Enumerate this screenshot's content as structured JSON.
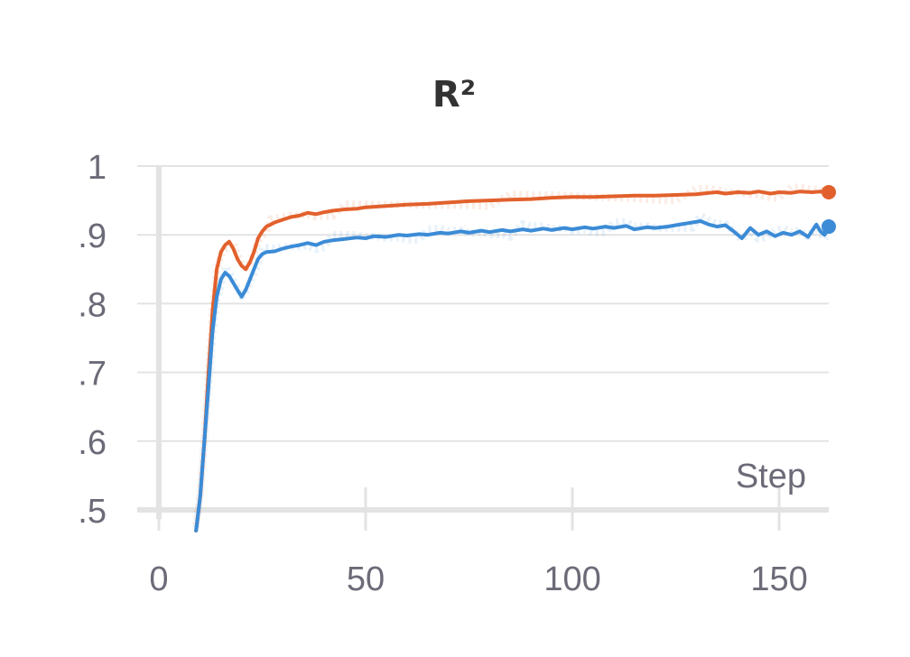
{
  "chart_data": {
    "type": "line",
    "title": "R²",
    "xlabel": "Step",
    "ylabel": "",
    "xlim": [
      0,
      162
    ],
    "ylim": [
      0.5,
      1.0
    ],
    "x_ticks": [
      0,
      50,
      100,
      150
    ],
    "y_ticks": [
      0.5,
      0.6,
      0.7,
      0.8,
      0.9,
      1.0
    ],
    "x_tick_labels": [
      "0",
      "50",
      "100",
      "150"
    ],
    "y_tick_labels": [
      ".5",
      ".6",
      ".7",
      ".8",
      ".9",
      "1"
    ],
    "grid": true,
    "legend": "none",
    "colors": {
      "orange": "#e2602c",
      "blue": "#3b8bd6"
    },
    "series": [
      {
        "color": "#e2602c",
        "x": [
          9,
          10,
          11,
          12,
          13,
          14,
          15,
          16,
          17,
          18,
          19,
          20,
          21,
          22,
          23,
          24,
          25,
          26,
          27,
          28,
          30,
          32,
          34,
          36,
          38,
          40,
          42,
          45,
          48,
          50,
          55,
          60,
          65,
          70,
          75,
          80,
          85,
          90,
          95,
          100,
          105,
          110,
          115,
          120,
          125,
          130,
          133,
          135,
          137,
          140,
          143,
          145,
          148,
          150,
          153,
          155,
          158,
          160,
          162
        ],
        "y": [
          0.47,
          0.52,
          0.6,
          0.7,
          0.79,
          0.85,
          0.875,
          0.885,
          0.89,
          0.88,
          0.865,
          0.855,
          0.85,
          0.86,
          0.875,
          0.895,
          0.905,
          0.912,
          0.915,
          0.918,
          0.922,
          0.926,
          0.928,
          0.932,
          0.93,
          0.933,
          0.935,
          0.937,
          0.938,
          0.94,
          0.942,
          0.944,
          0.945,
          0.947,
          0.949,
          0.95,
          0.951,
          0.952,
          0.954,
          0.955,
          0.955,
          0.956,
          0.957,
          0.957,
          0.958,
          0.959,
          0.961,
          0.962,
          0.96,
          0.962,
          0.961,
          0.963,
          0.96,
          0.962,
          0.961,
          0.963,
          0.962,
          0.963,
          0.962
        ]
      },
      {
        "color": "#3b8bd6",
        "x": [
          9,
          10,
          11,
          12,
          13,
          14,
          15,
          16,
          17,
          18,
          19,
          20,
          21,
          22,
          23,
          24,
          25,
          26,
          28,
          30,
          32,
          34,
          36,
          38,
          40,
          42,
          45,
          48,
          50,
          52,
          55,
          58,
          60,
          63,
          65,
          68,
          70,
          73,
          75,
          78,
          80,
          83,
          85,
          88,
          90,
          93,
          95,
          98,
          100,
          103,
          105,
          108,
          110,
          113,
          115,
          118,
          120,
          123,
          125,
          127,
          129,
          131,
          133,
          135,
          137,
          139,
          141,
          143,
          145,
          147,
          149,
          151,
          153,
          155,
          157,
          159,
          160,
          161,
          162
        ],
        "y": [
          0.47,
          0.52,
          0.6,
          0.68,
          0.76,
          0.81,
          0.835,
          0.845,
          0.84,
          0.83,
          0.82,
          0.81,
          0.82,
          0.835,
          0.85,
          0.865,
          0.872,
          0.875,
          0.876,
          0.88,
          0.883,
          0.885,
          0.888,
          0.885,
          0.89,
          0.892,
          0.894,
          0.896,
          0.895,
          0.898,
          0.897,
          0.9,
          0.899,
          0.901,
          0.9,
          0.903,
          0.902,
          0.905,
          0.903,
          0.906,
          0.904,
          0.907,
          0.905,
          0.908,
          0.906,
          0.909,
          0.907,
          0.91,
          0.908,
          0.911,
          0.909,
          0.912,
          0.91,
          0.913,
          0.908,
          0.911,
          0.91,
          0.912,
          0.914,
          0.916,
          0.918,
          0.92,
          0.915,
          0.912,
          0.914,
          0.905,
          0.895,
          0.91,
          0.9,
          0.905,
          0.898,
          0.903,
          0.9,
          0.905,
          0.897,
          0.915,
          0.905,
          0.9,
          0.912
        ]
      }
    ]
  }
}
